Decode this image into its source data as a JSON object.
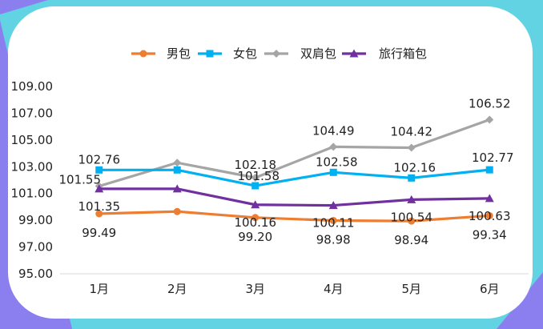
{
  "chart_data": {
    "type": "line",
    "categories": [
      "1月",
      "2月",
      "3月",
      "4月",
      "5月",
      "6月"
    ],
    "ylim": [
      95,
      109
    ],
    "yticks": [
      "95.00",
      "97.00",
      "99.00",
      "101.00",
      "103.00",
      "105.00",
      "107.00",
      "109.00"
    ],
    "legend_position": "top",
    "grid": false,
    "series": [
      {
        "name": "男包",
        "color": "#ED7D31",
        "marker": "circle",
        "values": [
          99.49,
          99.65,
          99.2,
          98.98,
          98.94,
          99.34
        ],
        "labels": [
          "99.49",
          "",
          "99.20",
          "98.98",
          "98.94",
          "99.34"
        ]
      },
      {
        "name": "女包",
        "color": "#00B0F0",
        "marker": "square",
        "values": [
          102.76,
          102.76,
          101.58,
          102.58,
          102.16,
          102.77
        ],
        "labels": [
          "102.76",
          "",
          "101.58",
          "102.58",
          "102.16",
          "102.77"
        ]
      },
      {
        "name": "双肩包",
        "color": "#A5A5A5",
        "marker": "diamond",
        "values": [
          101.55,
          103.3,
          102.18,
          104.49,
          104.42,
          106.52
        ],
        "labels": [
          "101.55",
          "",
          "102.18",
          "104.49",
          "104.42",
          "106.52"
        ]
      },
      {
        "name": "旅行箱包",
        "color": "#7030A0",
        "marker": "triangle",
        "values": [
          101.35,
          101.35,
          100.16,
          100.11,
          100.54,
          100.63
        ],
        "labels": [
          "101.35",
          "",
          "100.16",
          "100.11",
          "100.54",
          "100.63"
        ]
      }
    ]
  }
}
